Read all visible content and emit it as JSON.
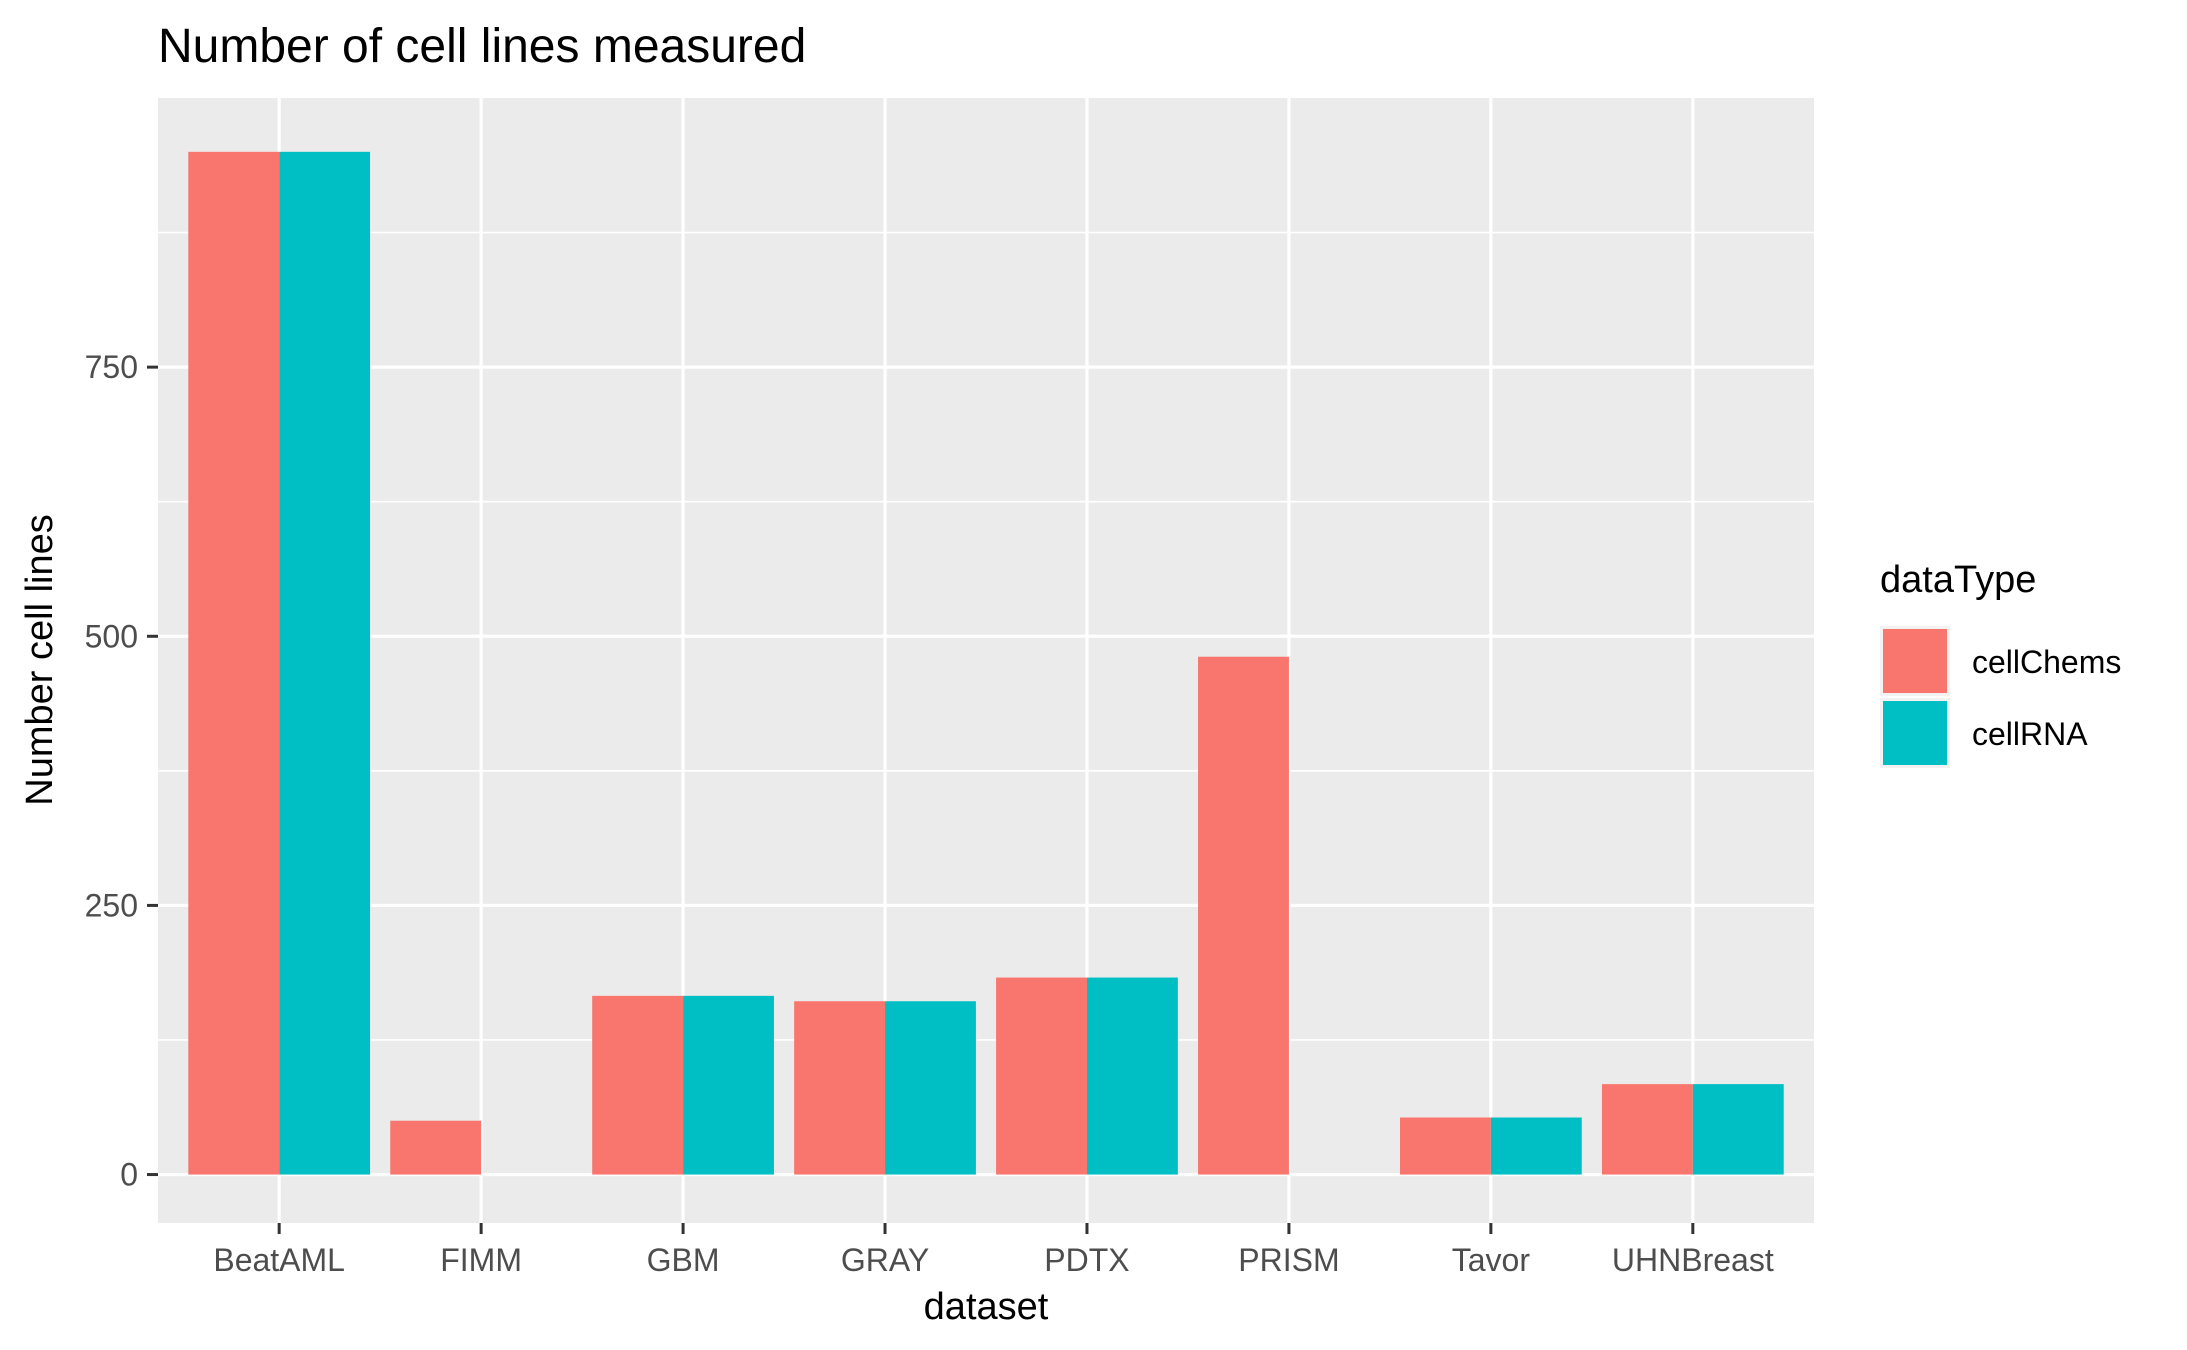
{
  "chart_data": {
    "type": "bar",
    "title": "Number of cell lines measured",
    "xlabel": "dataset",
    "ylabel": "Number cell lines",
    "categories": [
      "BeatAML",
      "FIMM",
      "GBM",
      "GRAY",
      "PDTX",
      "PRISM",
      "Tavor",
      "UHNBreast"
    ],
    "series": [
      {
        "name": "cellChems",
        "color": "#F8766D",
        "values": [
          950,
          50,
          166,
          161,
          183,
          481,
          53,
          84
        ]
      },
      {
        "name": "cellRNA",
        "color": "#00BFC4",
        "values": [
          950,
          0,
          166,
          161,
          183,
          0,
          53,
          84
        ]
      }
    ],
    "yticks": [
      0,
      250,
      500,
      750
    ],
    "ylim": [
      -45,
      1000
    ],
    "grid": true,
    "legend": {
      "title": "dataType",
      "position": "right"
    },
    "panel_background": "#EBEBEB",
    "grid_color": "#FFFFFF"
  }
}
